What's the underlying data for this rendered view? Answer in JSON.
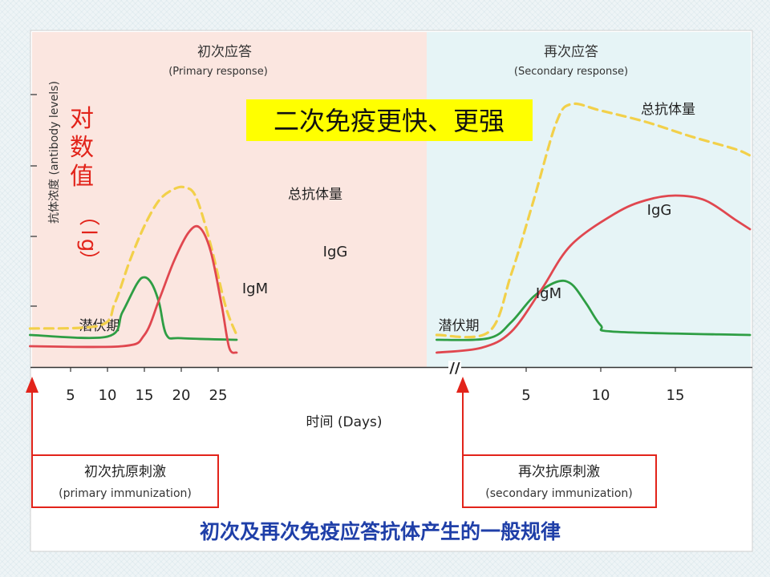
{
  "chart_data": {
    "type": "line",
    "title": "初次及再次免疫应答抗体产生的一般规律",
    "xlabel": "时间 (Days)",
    "ylabel": "抗体浓度 (antibody levels)",
    "y_annotation": "对数值（lg）",
    "highlight_text": "二次免疫更快、更强",
    "phases": [
      {
        "title": "初次应答",
        "subtitle": "(Primary response)",
        "color": "#fbe6e0"
      },
      {
        "title": "再次应答",
        "subtitle": "(Secondary response)",
        "color": "#e6f4f6"
      }
    ],
    "latency_label": "潜伏期",
    "primary_ticks": [
      "5",
      "10",
      "15",
      "20",
      "25"
    ],
    "secondary_ticks": [
      "5",
      "10",
      "15"
    ],
    "stimuli": [
      {
        "title": "初次抗原刺激",
        "subtitle": "(primary immunization)"
      },
      {
        "title": "再次抗原刺激",
        "subtitle": "(secondary immunization)"
      }
    ],
    "series": [
      {
        "name": "总抗体量",
        "color": "#f2d04a",
        "dash": true,
        "primary": [
          [
            -0.5,
            1.2
          ],
          [
            9,
            1.3
          ],
          [
            11,
            2.0
          ],
          [
            13,
            3.3
          ],
          [
            15,
            4.4
          ],
          [
            17,
            5.2
          ],
          [
            19,
            5.55
          ],
          [
            20.5,
            5.6
          ],
          [
            22,
            5.3
          ],
          [
            24,
            3.8
          ],
          [
            26,
            1.9
          ],
          [
            27.5,
            1.0
          ]
        ],
        "secondary": [
          [
            -1,
            1.0
          ],
          [
            2.5,
            1.1
          ],
          [
            4,
            2.9
          ],
          [
            5.5,
            5.2
          ],
          [
            7,
            7.6
          ],
          [
            8,
            8.2
          ],
          [
            10,
            8.0
          ],
          [
            13,
            7.65
          ],
          [
            16,
            7.2
          ],
          [
            19,
            6.8
          ],
          [
            20,
            6.6
          ]
        ]
      },
      {
        "name": "IgG",
        "color": "#e0474f",
        "dash": false,
        "primary": [
          [
            -0.5,
            0.65
          ],
          [
            12,
            0.65
          ],
          [
            15,
            1.0
          ],
          [
            17,
            2.1
          ],
          [
            19,
            3.3
          ],
          [
            21,
            4.2
          ],
          [
            22.5,
            4.35
          ],
          [
            24,
            3.6
          ],
          [
            25.5,
            1.9
          ],
          [
            26.5,
            0.6
          ],
          [
            27.5,
            0.45
          ]
        ],
        "secondary": [
          [
            -1,
            0.45
          ],
          [
            2,
            0.6
          ],
          [
            4,
            1.1
          ],
          [
            6,
            2.4
          ],
          [
            8,
            3.8
          ],
          [
            11,
            4.8
          ],
          [
            13,
            5.2
          ],
          [
            15,
            5.35
          ],
          [
            17,
            5.2
          ],
          [
            19,
            4.6
          ],
          [
            20,
            4.3
          ]
        ]
      },
      {
        "name": "IgM",
        "color": "#2e9e44",
        "dash": false,
        "primary": [
          [
            -0.5,
            1.0
          ],
          [
            10,
            0.95
          ],
          [
            12,
            1.7
          ],
          [
            14,
            2.6
          ],
          [
            15,
            2.8
          ],
          [
            16,
            2.6
          ],
          [
            17,
            2.0
          ],
          [
            18,
            1.0
          ],
          [
            20,
            0.9
          ],
          [
            27.5,
            0.85
          ]
        ],
        "secondary": [
          [
            -1,
            0.85
          ],
          [
            2.5,
            0.9
          ],
          [
            4,
            1.4
          ],
          [
            5.5,
            2.2
          ],
          [
            7,
            2.65
          ],
          [
            8,
            2.6
          ],
          [
            9,
            2.0
          ],
          [
            10,
            1.3
          ],
          [
            11,
            1.1
          ],
          [
            20,
            1.0
          ]
        ]
      }
    ],
    "curve_labels": [
      {
        "text": "总抗体量",
        "phase": "primary"
      },
      {
        "text": "IgG",
        "phase": "primary"
      },
      {
        "text": "IgM",
        "phase": "primary"
      },
      {
        "text": "总抗体量",
        "phase": "secondary"
      },
      {
        "text": "IgG",
        "phase": "secondary"
      },
      {
        "text": "IgM",
        "phase": "secondary"
      }
    ],
    "axis_break": "//",
    "ylim": [
      0,
      9
    ]
  }
}
